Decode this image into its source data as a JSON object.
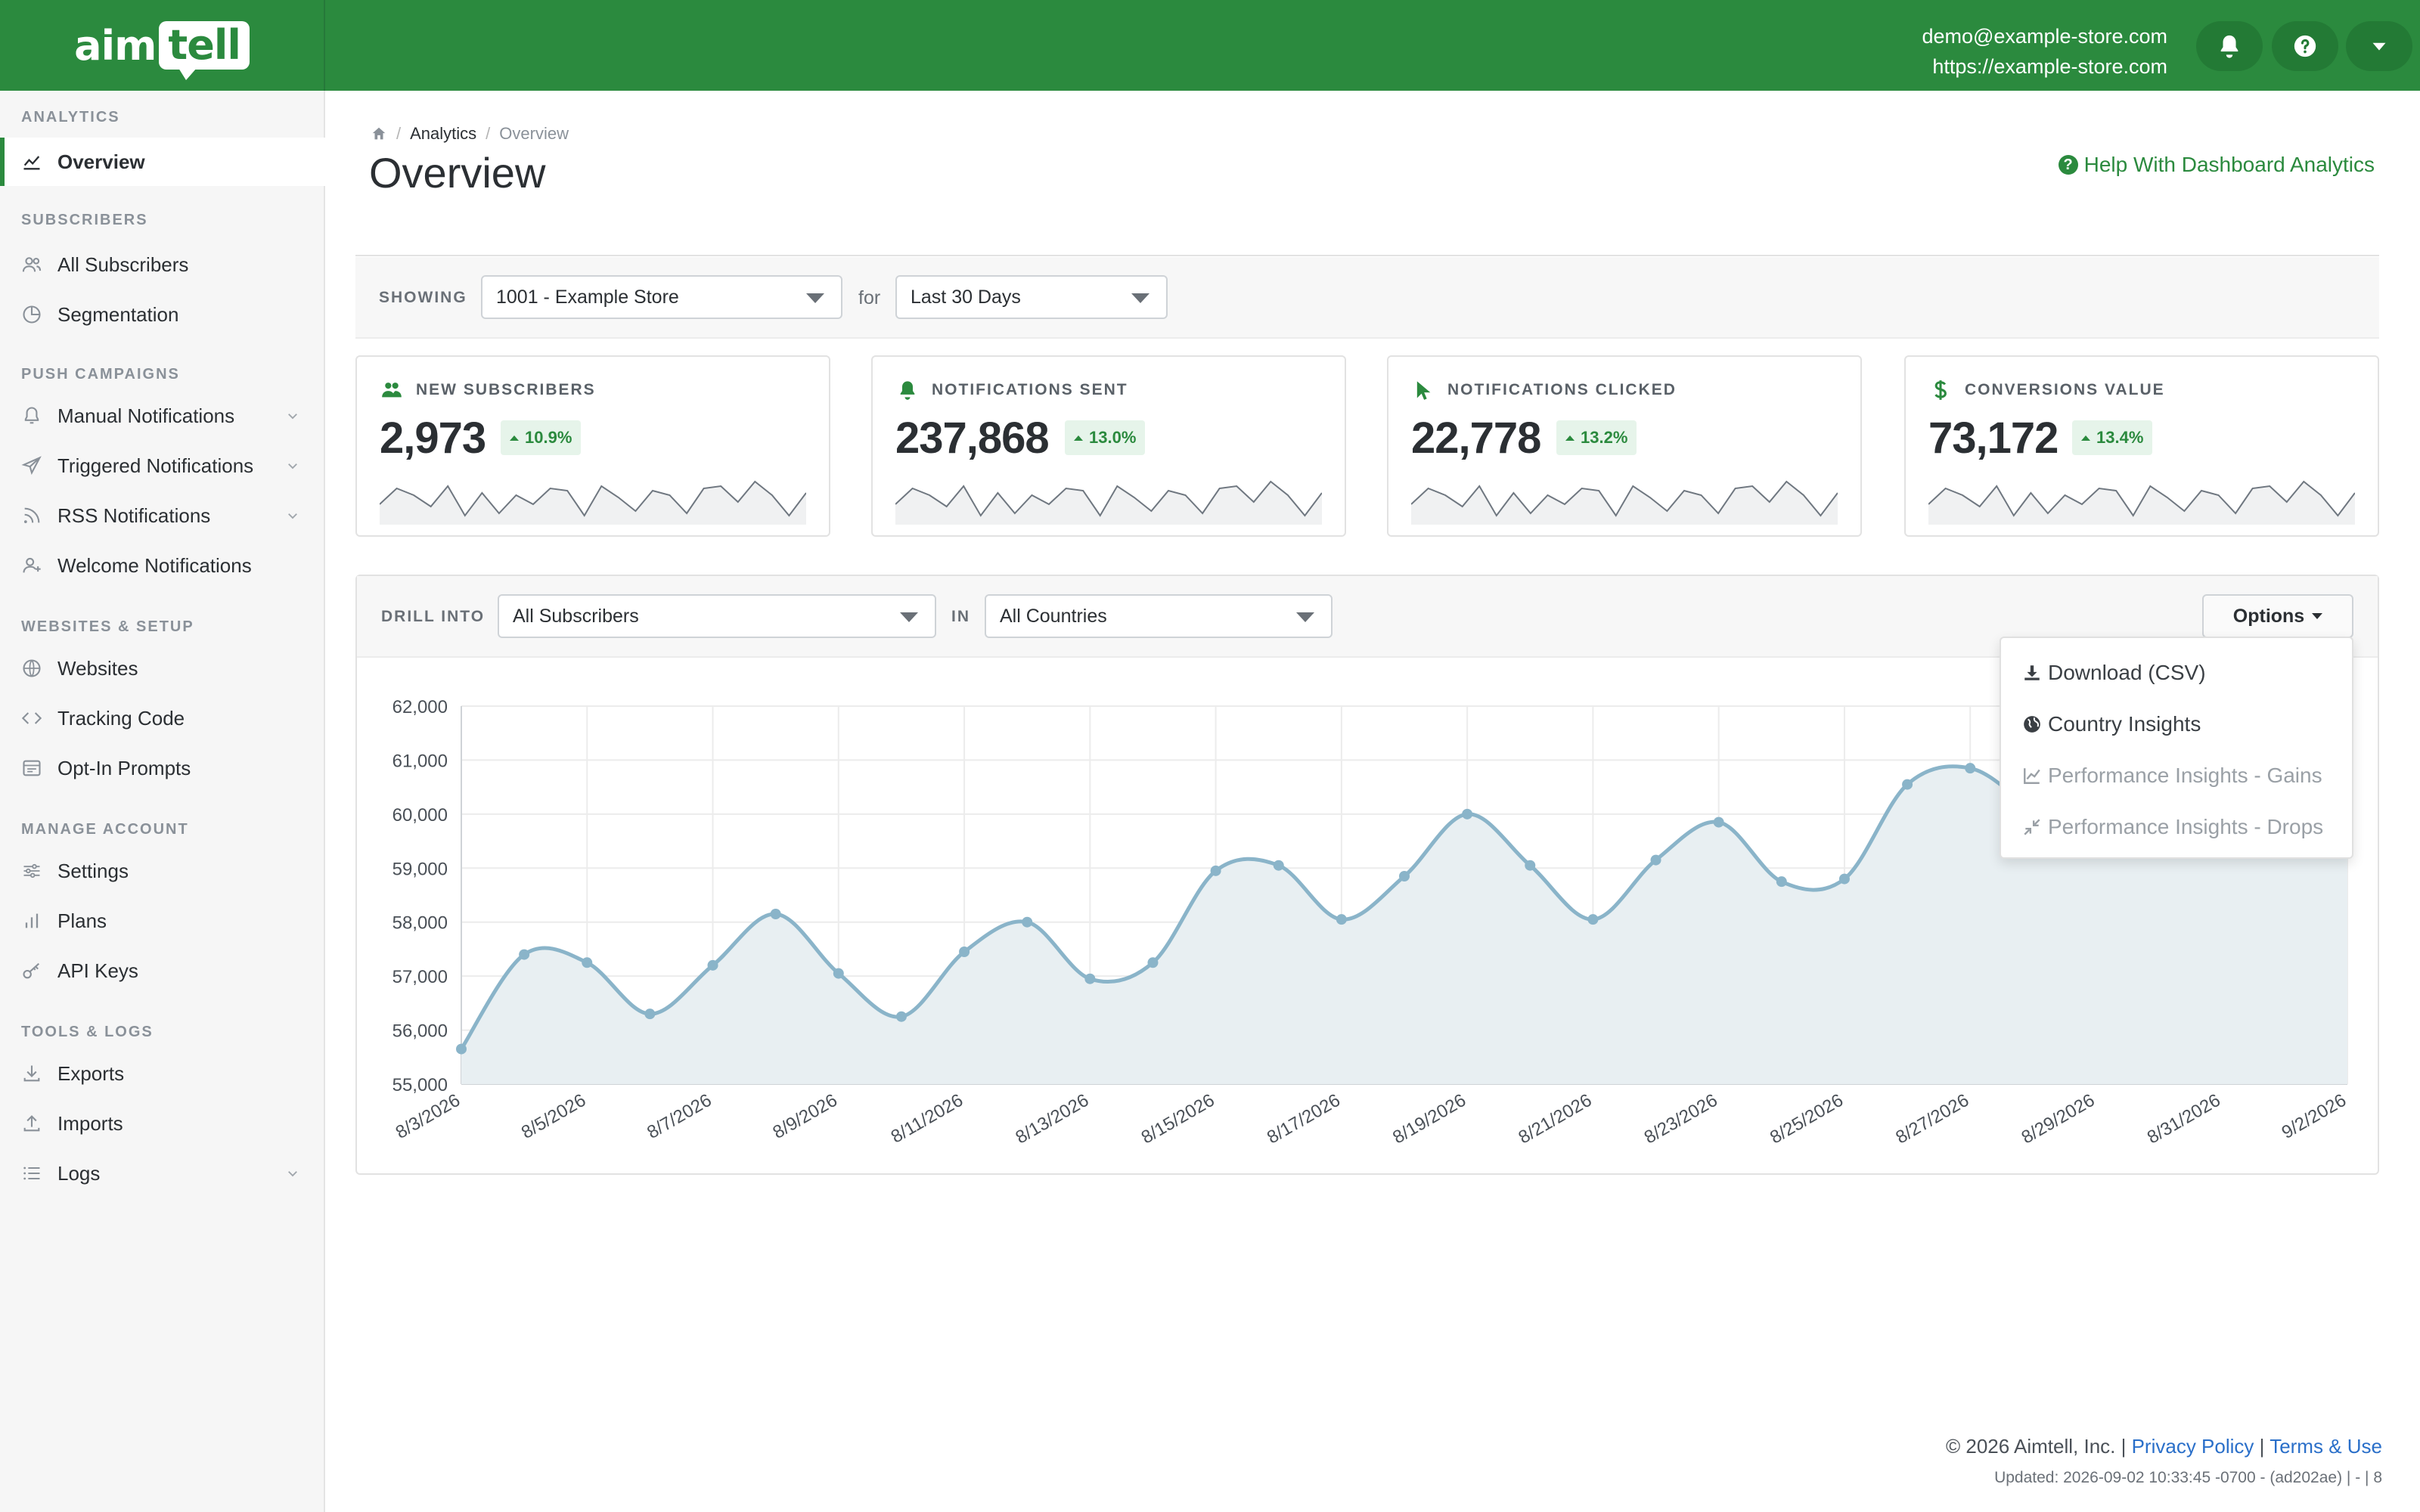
{
  "brand": {
    "logo_left": "aim",
    "logo_right": "tell",
    "primary_color": "#2b8a3e"
  },
  "account": {
    "email": "demo@example-store.com",
    "site": "https://example-store.com"
  },
  "topbar": {
    "icons": [
      "bell-icon",
      "question-circle-icon",
      "caret-down-icon"
    ]
  },
  "sidebar": {
    "sections": [
      {
        "title": "ANALYTICS",
        "items": [
          {
            "label": "Overview",
            "icon": "line-chart-icon",
            "active": true
          }
        ]
      },
      {
        "title": "SUBSCRIBERS",
        "items": [
          {
            "label": "All Subscribers",
            "icon": "users-icon"
          },
          {
            "label": "Segmentation",
            "icon": "pie-chart-icon"
          }
        ]
      },
      {
        "title": "PUSH CAMPAIGNS",
        "items": [
          {
            "label": "Manual Notifications",
            "icon": "bell-icon",
            "expandable": true
          },
          {
            "label": "Triggered Notifications",
            "icon": "paper-plane-icon",
            "expandable": true
          },
          {
            "label": "RSS Notifications",
            "icon": "rss-icon",
            "expandable": true
          },
          {
            "label": "Welcome Notifications",
            "icon": "user-plus-icon"
          }
        ]
      },
      {
        "title": "WEBSITES & SETUP",
        "items": [
          {
            "label": "Websites",
            "icon": "globe-icon"
          },
          {
            "label": "Tracking Code",
            "icon": "code-icon"
          },
          {
            "label": "Opt-In Prompts",
            "icon": "window-icon"
          }
        ]
      },
      {
        "title": "MANAGE ACCOUNT",
        "items": [
          {
            "label": "Settings",
            "icon": "sliders-icon"
          },
          {
            "label": "Plans",
            "icon": "bar-chart-icon"
          },
          {
            "label": "API Keys",
            "icon": "key-icon"
          }
        ]
      },
      {
        "title": "TOOLS & LOGS",
        "items": [
          {
            "label": "Exports",
            "icon": "download-icon"
          },
          {
            "label": "Imports",
            "icon": "upload-icon"
          },
          {
            "label": "Logs",
            "icon": "list-icon",
            "expandable": true
          }
        ]
      }
    ]
  },
  "breadcrumb": {
    "items": [
      "Analytics",
      "Overview"
    ]
  },
  "page": {
    "title": "Overview",
    "help_link": "Help With Dashboard Analytics"
  },
  "filters": {
    "showing_label": "SHOWING",
    "site_value": "1001 - Example Store",
    "for_label": "for",
    "range_value": "Last 30 Days"
  },
  "stats": [
    {
      "label": "NEW SUBSCRIBERS",
      "value": "2,973",
      "change": "10.9%",
      "icon": "users-icon"
    },
    {
      "label": "NOTIFICATIONS SENT",
      "value": "237,868",
      "change": "13.0%",
      "icon": "bell-icon"
    },
    {
      "label": "NOTIFICATIONS CLICKED",
      "value": "22,778",
      "change": "13.2%",
      "icon": "cursor-icon"
    },
    {
      "label": "CONVERSIONS VALUE",
      "value": "73,172",
      "change": "13.4%",
      "icon": "dollar-icon"
    }
  ],
  "sparkline": [
    0.35,
    0.7,
    0.55,
    0.3,
    0.75,
    0.1,
    0.6,
    0.15,
    0.55,
    0.35,
    0.7,
    0.65,
    0.1,
    0.75,
    0.5,
    0.2,
    0.65,
    0.55,
    0.15,
    0.7,
    0.75,
    0.4,
    0.85,
    0.55,
    0.1,
    0.6
  ],
  "drill": {
    "label": "DRILL INTO",
    "subject_value": "All Subscribers",
    "in_label": "IN",
    "country_value": "All Countries",
    "options_label": "Options"
  },
  "options_menu": {
    "items": [
      {
        "label": "Download (CSV)",
        "icon": "download-icon",
        "disabled": false
      },
      {
        "label": "Country Insights",
        "icon": "globe-icon",
        "disabled": false
      },
      {
        "label": "Performance Insights - Gains",
        "icon": "line-chart-icon",
        "disabled": true
      },
      {
        "label": "Performance Insights - Drops",
        "icon": "compress-icon",
        "disabled": true
      }
    ]
  },
  "chart_data": {
    "type": "line",
    "x": [
      "8/3/2026",
      "8/4/2026",
      "8/5/2026",
      "8/6/2026",
      "8/7/2026",
      "8/8/2026",
      "8/9/2026",
      "8/10/2026",
      "8/11/2026",
      "8/12/2026",
      "8/13/2026",
      "8/14/2026",
      "8/15/2026",
      "8/16/2026",
      "8/17/2026",
      "8/18/2026",
      "8/19/2026",
      "8/20/2026",
      "8/21/2026",
      "8/22/2026",
      "8/23/2026",
      "8/24/2026",
      "8/25/2026",
      "8/26/2026",
      "8/27/2026",
      "8/28/2026",
      "8/29/2026",
      "8/30/2026",
      "8/31/2026",
      "9/1/2026",
      "9/2/2026"
    ],
    "xticks": [
      "8/3/2026",
      "8/5/2026",
      "8/7/2026",
      "8/9/2026",
      "8/11/2026",
      "8/13/2026",
      "8/15/2026",
      "8/17/2026",
      "8/19/2026",
      "8/21/2026",
      "8/23/2026",
      "8/25/2026",
      "8/27/2026",
      "8/29/2026",
      "8/31/2026",
      "9/2/2026"
    ],
    "series": [
      {
        "values": [
          55650,
          57400,
          57250,
          56300,
          57200,
          58150,
          57050,
          56250,
          57450,
          58000,
          56950,
          57250,
          58950,
          59050,
          58050,
          58850,
          60000,
          59050,
          58050,
          59150,
          59850,
          58750,
          58800,
          60550,
          60850,
          60100,
          59500,
          59600,
          59800,
          59700,
          59650
        ]
      }
    ],
    "ylim": [
      55000,
      62000
    ],
    "yticks": [
      "55,000",
      "56,000",
      "57,000",
      "58,000",
      "59,000",
      "60,000",
      "61,000",
      "62,000"
    ],
    "grid": true,
    "line_color": "#8ab4c9",
    "fill_color": "#e8eff2"
  },
  "footer": {
    "copyright": "© 2026 Aimtell, Inc. |",
    "privacy": "Privacy Policy",
    "separator": "|",
    "terms": "Terms & Use",
    "updated": "Updated: 2026-09-02 10:33:45 -0700 - (ad202ae) | - | 8"
  }
}
